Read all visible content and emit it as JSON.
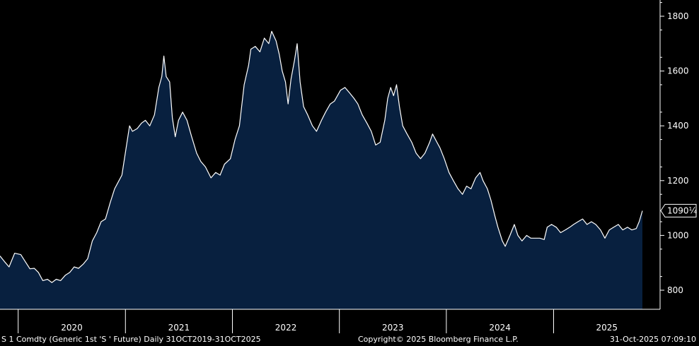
{
  "chart_data": {
    "type": "area",
    "ylim": [
      750,
      1850
    ],
    "y_ticks": [
      800,
      1000,
      1200,
      1400,
      1600,
      1800
    ],
    "x_range": [
      "2019-10-31",
      "2025-10-31"
    ],
    "x_tick_labels": [
      "2020",
      "2021",
      "2022",
      "2023",
      "2024",
      "2025"
    ],
    "last_value_label": "1090¼",
    "last_value": 1090.25,
    "grid": false,
    "series": [
      {
        "points": [
          [
            "2019-10-31",
            925
          ],
          [
            "2019-11-15",
            905
          ],
          [
            "2019-12-01",
            885
          ],
          [
            "2019-12-20",
            935
          ],
          [
            "2020-01-10",
            930
          ],
          [
            "2020-01-25",
            905
          ],
          [
            "2020-02-10",
            878
          ],
          [
            "2020-02-25",
            880
          ],
          [
            "2020-03-10",
            865
          ],
          [
            "2020-03-25",
            835
          ],
          [
            "2020-04-10",
            840
          ],
          [
            "2020-04-25",
            828
          ],
          [
            "2020-05-10",
            840
          ],
          [
            "2020-05-25",
            835
          ],
          [
            "2020-06-10",
            855
          ],
          [
            "2020-06-25",
            865
          ],
          [
            "2020-07-10",
            885
          ],
          [
            "2020-07-25",
            880
          ],
          [
            "2020-08-10",
            895
          ],
          [
            "2020-08-25",
            915
          ],
          [
            "2020-09-10",
            980
          ],
          [
            "2020-09-25",
            1010
          ],
          [
            "2020-10-10",
            1050
          ],
          [
            "2020-10-25",
            1060
          ],
          [
            "2020-11-10",
            1120
          ],
          [
            "2020-11-25",
            1170
          ],
          [
            "2020-12-05",
            1190
          ],
          [
            "2020-12-20",
            1220
          ],
          [
            "2021-01-05",
            1330
          ],
          [
            "2021-01-15",
            1400
          ],
          [
            "2021-01-25",
            1380
          ],
          [
            "2021-02-10",
            1390
          ],
          [
            "2021-02-25",
            1410
          ],
          [
            "2021-03-10",
            1420
          ],
          [
            "2021-03-25",
            1400
          ],
          [
            "2021-04-10",
            1440
          ],
          [
            "2021-04-25",
            1540
          ],
          [
            "2021-05-05",
            1580
          ],
          [
            "2021-05-12",
            1655
          ],
          [
            "2021-05-20",
            1580
          ],
          [
            "2021-06-01",
            1560
          ],
          [
            "2021-06-10",
            1430
          ],
          [
            "2021-06-20",
            1360
          ],
          [
            "2021-07-01",
            1420
          ],
          [
            "2021-07-15",
            1450
          ],
          [
            "2021-07-30",
            1420
          ],
          [
            "2021-08-15",
            1360
          ],
          [
            "2021-09-01",
            1300
          ],
          [
            "2021-09-15",
            1270
          ],
          [
            "2021-10-01",
            1250
          ],
          [
            "2021-10-20",
            1210
          ],
          [
            "2021-11-05",
            1230
          ],
          [
            "2021-11-20",
            1220
          ],
          [
            "2021-12-05",
            1260
          ],
          [
            "2021-12-25",
            1280
          ],
          [
            "2022-01-10",
            1350
          ],
          [
            "2022-01-25",
            1400
          ],
          [
            "2022-02-10",
            1550
          ],
          [
            "2022-02-25",
            1620
          ],
          [
            "2022-03-05",
            1680
          ],
          [
            "2022-03-20",
            1690
          ],
          [
            "2022-04-05",
            1670
          ],
          [
            "2022-04-20",
            1720
          ],
          [
            "2022-05-05",
            1700
          ],
          [
            "2022-05-15",
            1745
          ],
          [
            "2022-05-30",
            1710
          ],
          [
            "2022-06-10",
            1660
          ],
          [
            "2022-06-20",
            1600
          ],
          [
            "2022-07-01",
            1560
          ],
          [
            "2022-07-10",
            1480
          ],
          [
            "2022-07-20",
            1570
          ],
          [
            "2022-08-01",
            1640
          ],
          [
            "2022-08-10",
            1700
          ],
          [
            "2022-08-20",
            1560
          ],
          [
            "2022-09-01",
            1470
          ],
          [
            "2022-09-15",
            1440
          ],
          [
            "2022-10-01",
            1400
          ],
          [
            "2022-10-15",
            1380
          ],
          [
            "2022-11-01",
            1420
          ],
          [
            "2022-11-15",
            1450
          ],
          [
            "2022-12-01",
            1480
          ],
          [
            "2022-12-15",
            1490
          ],
          [
            "2023-01-05",
            1530
          ],
          [
            "2023-01-20",
            1540
          ],
          [
            "2023-02-05",
            1520
          ],
          [
            "2023-02-20",
            1500
          ],
          [
            "2023-03-05",
            1480
          ],
          [
            "2023-03-20",
            1440
          ],
          [
            "2023-04-05",
            1410
          ],
          [
            "2023-04-20",
            1380
          ],
          [
            "2023-05-05",
            1330
          ],
          [
            "2023-05-20",
            1340
          ],
          [
            "2023-06-05",
            1420
          ],
          [
            "2023-06-15",
            1500
          ],
          [
            "2023-06-25",
            1540
          ],
          [
            "2023-07-05",
            1510
          ],
          [
            "2023-07-15",
            1550
          ],
          [
            "2023-07-25",
            1470
          ],
          [
            "2023-08-05",
            1400
          ],
          [
            "2023-08-20",
            1370
          ],
          [
            "2023-09-05",
            1340
          ],
          [
            "2023-09-20",
            1300
          ],
          [
            "2023-10-05",
            1280
          ],
          [
            "2023-10-20",
            1300
          ],
          [
            "2023-11-05",
            1340
          ],
          [
            "2023-11-15",
            1370
          ],
          [
            "2023-11-30",
            1340
          ],
          [
            "2023-12-10",
            1320
          ],
          [
            "2023-12-25",
            1280
          ],
          [
            "2024-01-10",
            1230
          ],
          [
            "2024-01-25",
            1200
          ],
          [
            "2024-02-10",
            1170
          ],
          [
            "2024-02-25",
            1150
          ],
          [
            "2024-03-10",
            1180
          ],
          [
            "2024-03-25",
            1170
          ],
          [
            "2024-04-10",
            1210
          ],
          [
            "2024-04-25",
            1230
          ],
          [
            "2024-05-05",
            1200
          ],
          [
            "2024-05-20",
            1170
          ],
          [
            "2024-06-01",
            1130
          ],
          [
            "2024-06-15",
            1070
          ],
          [
            "2024-06-25",
            1030
          ],
          [
            "2024-07-10",
            980
          ],
          [
            "2024-07-20",
            960
          ],
          [
            "2024-08-05",
            1000
          ],
          [
            "2024-08-20",
            1040
          ],
          [
            "2024-09-01",
            1000
          ],
          [
            "2024-09-15",
            980
          ],
          [
            "2024-10-01",
            1000
          ],
          [
            "2024-10-15",
            990
          ],
          [
            "2024-11-01",
            990
          ],
          [
            "2024-11-15",
            990
          ],
          [
            "2024-11-30",
            985
          ],
          [
            "2024-12-10",
            1030
          ],
          [
            "2024-12-25",
            1040
          ],
          [
            "2025-01-10",
            1030
          ],
          [
            "2025-01-25",
            1010
          ],
          [
            "2025-02-10",
            1020
          ],
          [
            "2025-02-25",
            1030
          ],
          [
            "2025-03-10",
            1040
          ],
          [
            "2025-03-25",
            1050
          ],
          [
            "2025-04-10",
            1060
          ],
          [
            "2025-04-25",
            1040
          ],
          [
            "2025-05-10",
            1050
          ],
          [
            "2025-05-25",
            1040
          ],
          [
            "2025-06-10",
            1020
          ],
          [
            "2025-06-25",
            990
          ],
          [
            "2025-07-10",
            1020
          ],
          [
            "2025-07-25",
            1030
          ],
          [
            "2025-08-10",
            1040
          ],
          [
            "2025-08-25",
            1020
          ],
          [
            "2025-09-10",
            1030
          ],
          [
            "2025-09-25",
            1020
          ],
          [
            "2025-10-10",
            1025
          ],
          [
            "2025-10-20",
            1050
          ],
          [
            "2025-10-31",
            1090
          ]
        ],
        "line_color": "#ffffff",
        "fill_color": "#08203f"
      }
    ]
  },
  "footer": {
    "left": "S 1 Comdty (Generic 1st 'S ' Future) Daily 31OCT2019-31OCT2025",
    "center": "Copyright© 2025 Bloomberg Finance L.P.",
    "right": "31-Oct-2025 07:09:10"
  },
  "colors": {
    "background": "#000000",
    "axis": "#ffffff",
    "label_box": "#ffffff"
  }
}
